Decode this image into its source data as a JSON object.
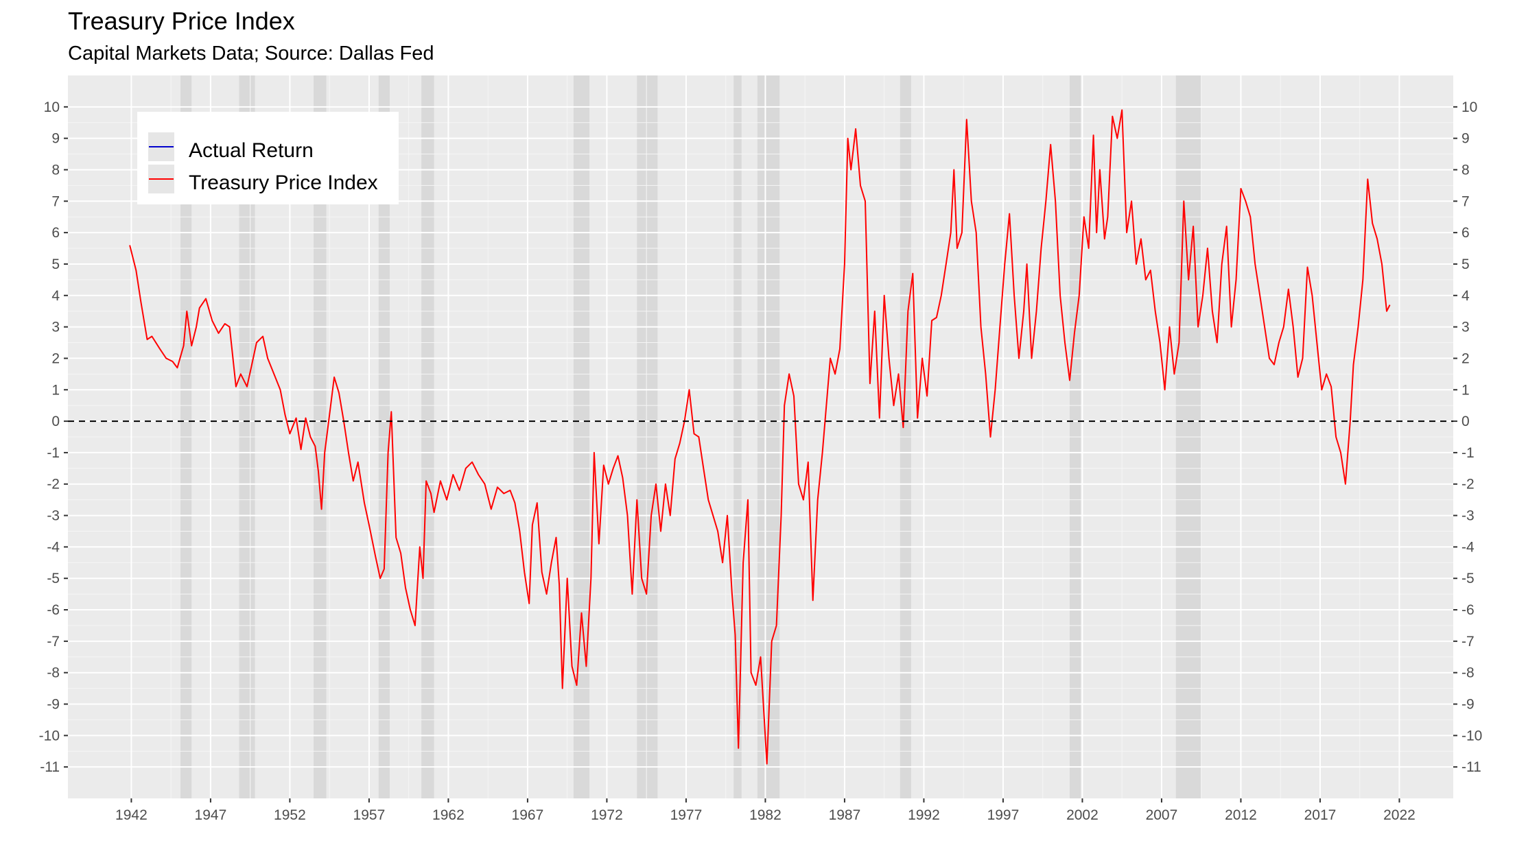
{
  "chart_data": {
    "type": "line",
    "title": "Treasury Price Index",
    "subtitle": "Capital Markets Data; Source: Dallas Fed",
    "xlabel": "",
    "ylabel": "",
    "xlim": [
      1938.0,
      2025.4
    ],
    "ylim": [
      -12.0,
      11.0
    ],
    "x_ticks": [
      1942,
      1947,
      1952,
      1957,
      1962,
      1967,
      1972,
      1977,
      1982,
      1987,
      1992,
      1997,
      2002,
      2007,
      2012,
      2017,
      2022
    ],
    "y_ticks": [
      -11,
      -10,
      -9,
      -8,
      -7,
      -6,
      -5,
      -4,
      -3,
      -2,
      -1,
      0,
      1,
      2,
      3,
      4,
      5,
      6,
      7,
      8,
      9,
      10
    ],
    "reference_line": {
      "y": 0,
      "style": "dashed",
      "color": "#000000"
    },
    "recessions": [
      [
        1945.1,
        1945.8
      ],
      [
        1948.8,
        1949.8
      ],
      [
        1953.5,
        1954.3
      ],
      [
        1957.6,
        1958.3
      ],
      [
        1960.3,
        1961.1
      ],
      [
        1969.9,
        1970.9
      ],
      [
        1973.9,
        1975.2
      ],
      [
        1980.0,
        1980.5
      ],
      [
        1981.5,
        1982.9
      ],
      [
        1990.5,
        1991.2
      ],
      [
        2001.2,
        2001.9
      ],
      [
        2007.9,
        2009.5
      ]
    ],
    "legend": {
      "position": "top-left",
      "entries": [
        "Actual Return",
        "Treasury Price Index"
      ]
    },
    "series": [
      {
        "name": "Actual Return",
        "color": "#0000cd",
        "x": [],
        "values": []
      },
      {
        "name": "Treasury Price Index",
        "color": "#ff0000",
        "x": [
          1941.9,
          1942.3,
          1942.6,
          1943.0,
          1943.3,
          1943.8,
          1944.2,
          1944.6,
          1944.9,
          1945.3,
          1945.5,
          1945.8,
          1946.1,
          1946.3,
          1946.7,
          1947.1,
          1947.5,
          1947.9,
          1948.2,
          1948.6,
          1948.9,
          1949.3,
          1949.6,
          1949.9,
          1950.3,
          1950.6,
          1951.0,
          1951.4,
          1951.7,
          1952.0,
          1952.4,
          1952.7,
          1953.0,
          1953.3,
          1953.6,
          1953.8,
          1954.0,
          1954.2,
          1954.5,
          1954.8,
          1955.1,
          1955.4,
          1955.7,
          1956.0,
          1956.3,
          1956.7,
          1957.0,
          1957.4,
          1957.7,
          1957.95,
          1958.2,
          1958.4,
          1958.7,
          1959.0,
          1959.3,
          1959.6,
          1959.9,
          1960.2,
          1960.4,
          1960.6,
          1960.9,
          1961.1,
          1961.5,
          1961.9,
          1962.3,
          1962.7,
          1963.1,
          1963.5,
          1963.9,
          1964.3,
          1964.7,
          1965.1,
          1965.5,
          1965.9,
          1966.2,
          1966.5,
          1966.8,
          1967.1,
          1967.3,
          1967.6,
          1967.9,
          1968.2,
          1968.5,
          1968.8,
          1969.0,
          1969.2,
          1969.5,
          1969.8,
          1970.1,
          1970.4,
          1970.7,
          1971.0,
          1971.2,
          1971.5,
          1971.8,
          1972.1,
          1972.4,
          1972.7,
          1973.0,
          1973.3,
          1973.6,
          1973.9,
          1974.2,
          1974.5,
          1974.8,
          1975.1,
          1975.4,
          1975.7,
          1976.0,
          1976.3,
          1976.6,
          1976.9,
          1977.2,
          1977.5,
          1977.8,
          1978.1,
          1978.4,
          1978.7,
          1979.0,
          1979.3,
          1979.6,
          1979.9,
          1980.1,
          1980.3,
          1980.6,
          1980.9,
          1981.1,
          1981.4,
          1981.7,
          1981.9,
          1982.1,
          1982.4,
          1982.7,
          1983.0,
          1983.2,
          1983.5,
          1983.8,
          1984.1,
          1984.4,
          1984.7,
          1985.0,
          1985.3,
          1985.6,
          1985.9,
          1986.1,
          1986.4,
          1986.7,
          1987.0,
          1987.2,
          1987.4,
          1987.7,
          1988.0,
          1988.3,
          1988.6,
          1988.9,
          1989.2,
          1989.5,
          1989.8,
          1990.1,
          1990.4,
          1990.7,
          1991.0,
          1991.3,
          1991.6,
          1991.9,
          1992.2,
          1992.5,
          1992.8,
          1993.1,
          1993.4,
          1993.7,
          1993.9,
          1994.1,
          1994.4,
          1994.7,
          1995.0,
          1995.3,
          1995.6,
          1995.9,
          1996.2,
          1996.5,
          1996.8,
          1997.1,
          1997.4,
          1997.7,
          1998.0,
          1998.3,
          1998.5,
          1998.8,
          1999.1,
          1999.4,
          1999.7,
          2000.0,
          2000.3,
          2000.6,
          2000.9,
          2001.2,
          2001.5,
          2001.8,
          2002.1,
          2002.4,
          2002.7,
          2002.9,
          2003.1,
          2003.4,
          2003.6,
          2003.9,
          2004.2,
          2004.5,
          2004.8,
          2005.1,
          2005.4,
          2005.7,
          2006.0,
          2006.3,
          2006.6,
          2006.9,
          2007.2,
          2007.5,
          2007.8,
          2008.1,
          2008.4,
          2008.7,
          2009.0,
          2009.3,
          2009.6,
          2009.9,
          2010.2,
          2010.5,
          2010.8,
          2011.1,
          2011.4,
          2011.7,
          2012.0,
          2012.3,
          2012.6,
          2012.9,
          2013.2,
          2013.5,
          2013.8,
          2014.1,
          2014.4,
          2014.7,
          2015.0,
          2015.3,
          2015.6,
          2015.9,
          2016.2,
          2016.5,
          2016.8,
          2017.1,
          2017.4,
          2017.7,
          2018.0,
          2018.3,
          2018.6,
          2018.9,
          2019.1,
          2019.4,
          2019.7,
          2020.0,
          2020.3,
          2020.6,
          2020.9,
          2021.2,
          2021.4
        ],
        "values": [
          5.6,
          4.8,
          3.8,
          2.6,
          2.7,
          2.3,
          2.0,
          1.9,
          1.7,
          2.4,
          3.5,
          2.4,
          3.0,
          3.6,
          3.9,
          3.2,
          2.8,
          3.1,
          3.0,
          1.1,
          1.5,
          1.1,
          1.8,
          2.5,
          2.7,
          2.0,
          1.5,
          1.0,
          0.2,
          -0.4,
          0.1,
          -0.9,
          0.1,
          -0.5,
          -0.8,
          -1.6,
          -2.8,
          -1.0,
          0.2,
          1.4,
          0.9,
          0.0,
          -1.0,
          -1.9,
          -1.3,
          -2.6,
          -3.3,
          -4.3,
          -5.0,
          -4.7,
          -1.0,
          0.3,
          -3.7,
          -4.2,
          -5.3,
          -6.0,
          -6.5,
          -4.0,
          -5.0,
          -1.9,
          -2.3,
          -2.9,
          -1.9,
          -2.5,
          -1.7,
          -2.2,
          -1.5,
          -1.3,
          -1.7,
          -2.0,
          -2.8,
          -2.1,
          -2.3,
          -2.2,
          -2.6,
          -3.5,
          -4.8,
          -5.8,
          -3.3,
          -2.6,
          -4.8,
          -5.5,
          -4.5,
          -3.7,
          -5.2,
          -8.5,
          -5.0,
          -7.8,
          -8.4,
          -6.1,
          -7.8,
          -5.0,
          -1.0,
          -3.9,
          -1.4,
          -2.0,
          -1.5,
          -1.1,
          -1.8,
          -3.0,
          -5.5,
          -2.5,
          -5.0,
          -5.5,
          -3.0,
          -2.0,
          -3.5,
          -2.0,
          -3.0,
          -1.2,
          -0.7,
          0.0,
          1.0,
          -0.4,
          -0.5,
          -1.5,
          -2.5,
          -3.0,
          -3.5,
          -4.5,
          -3.0,
          -5.5,
          -6.8,
          -10.4,
          -4.5,
          -2.5,
          -8.0,
          -8.4,
          -7.5,
          -9.2,
          -10.9,
          -7.0,
          -6.5,
          -3.0,
          0.5,
          1.5,
          0.8,
          -2.0,
          -2.5,
          -1.3,
          -5.7,
          -2.5,
          -1.0,
          0.8,
          2.0,
          1.5,
          2.3,
          5.0,
          9.0,
          8.0,
          9.3,
          7.5,
          7.0,
          1.2,
          3.5,
          0.1,
          4.0,
          2.0,
          0.5,
          1.5,
          -0.2,
          3.5,
          4.7,
          0.1,
          2.0,
          0.8,
          3.2,
          3.3,
          4.0,
          5.0,
          6.0,
          8.0,
          5.5,
          6.0,
          9.6,
          7.0,
          6.0,
          3.0,
          1.5,
          -0.5,
          1.0,
          3.0,
          5.0,
          6.6,
          4.0,
          2.0,
          3.5,
          5.0,
          2.0,
          3.5,
          5.5,
          7.0,
          8.8,
          7.0,
          4.0,
          2.5,
          1.3,
          2.8,
          4.0,
          6.5,
          5.5,
          9.1,
          6.0,
          8.0,
          5.8,
          6.5,
          9.7,
          9.0,
          9.9,
          6.0,
          7.0,
          5.0,
          5.8,
          4.5,
          4.8,
          3.5,
          2.5,
          1.0,
          3.0,
          1.5,
          2.5,
          7.0,
          4.5,
          6.2,
          3.0,
          4.0,
          5.5,
          3.5,
          2.5,
          5.0,
          6.2,
          3.0,
          4.5,
          7.4,
          7.0,
          6.5,
          5.0,
          4.0,
          3.0,
          2.0,
          1.8,
          2.5,
          3.0,
          4.2,
          3.0,
          1.4,
          2.0,
          4.9,
          4.0,
          2.5,
          1.0,
          1.5,
          1.1,
          -0.5,
          -1.0,
          -2.0,
          0.0,
          1.8,
          3.0,
          4.5,
          7.7,
          6.3,
          5.8,
          5.0,
          3.5,
          3.7
        ]
      }
    ]
  }
}
